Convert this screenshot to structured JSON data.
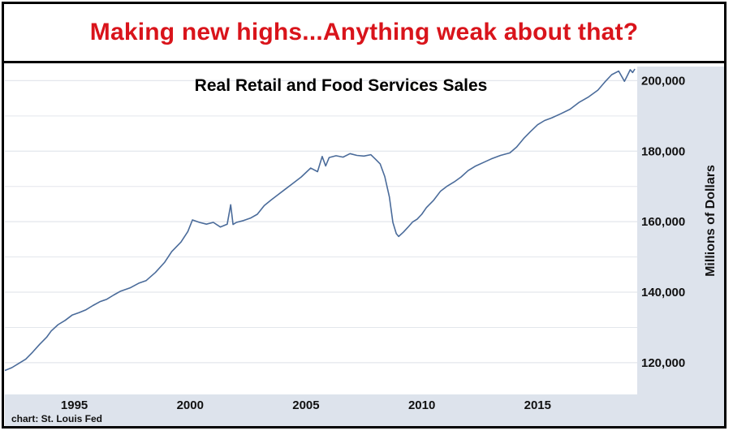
{
  "headline": "Making new highs...Anything weak about that?",
  "source_note": "chart: St. Louis Fed",
  "colors": {
    "headline": "#d9141b",
    "line": "#4a6b9a",
    "plot_bg": "#ffffff",
    "axis_strip": "#dde3ec",
    "grid": "#e3e6ec"
  },
  "chart_data": {
    "type": "line",
    "title": "Real Retail and Food Services Sales",
    "ylabel": "Millions of Dollars",
    "xlabel": "",
    "xlim": [
      1992.0,
      2019.3
    ],
    "ylim": [
      111000,
      204000
    ],
    "x_ticks": [
      1995,
      2000,
      2005,
      2010,
      2015
    ],
    "x_tick_labels": [
      "1995",
      "2000",
      "2005",
      "2010",
      "2015"
    ],
    "y_ticks": [
      120000,
      140000,
      160000,
      180000,
      200000
    ],
    "y_tick_labels": [
      "120,000",
      "140,000",
      "160,000",
      "180,000",
      "200,000"
    ],
    "grid": true,
    "legend": "none",
    "series": [
      {
        "x": [
          1992.0,
          1992.3,
          1992.6,
          1992.9,
          1993.2,
          1993.5,
          1993.8,
          1994.0,
          1994.3,
          1994.6,
          1994.9,
          1995.2,
          1995.5,
          1995.8,
          1996.1,
          1996.4,
          1996.7,
          1997.0,
          1997.4,
          1997.8,
          1998.1,
          1998.5,
          1998.9,
          1999.2,
          1999.6,
          1999.9,
          2000.1,
          2000.4,
          2000.7,
          2001.0,
          2001.3,
          2001.6,
          2001.75,
          2001.85,
          2002.0,
          2002.3,
          2002.6,
          2002.9,
          2003.2,
          2003.5,
          2003.8,
          2004.1,
          2004.4,
          2004.8,
          2005.2,
          2005.5,
          2005.7,
          2005.85,
          2006.0,
          2006.3,
          2006.6,
          2006.9,
          2007.2,
          2007.5,
          2007.8,
          2008.0,
          2008.2,
          2008.4,
          2008.6,
          2008.75,
          2008.9,
          2009.0,
          2009.2,
          2009.4,
          2009.6,
          2009.8,
          2010.0,
          2010.2,
          2010.5,
          2010.8,
          2011.1,
          2011.4,
          2011.7,
          2012.0,
          2012.3,
          2012.7,
          2013.0,
          2013.4,
          2013.8,
          2014.1,
          2014.4,
          2014.7,
          2015.0,
          2015.3,
          2015.6,
          2016.0,
          2016.4,
          2016.8,
          2017.2,
          2017.6,
          2017.9,
          2018.2,
          2018.5,
          2018.75,
          2018.9,
          2019.0,
          2019.1,
          2019.2
        ],
        "values": [
          117800,
          118600,
          119800,
          121000,
          123000,
          125200,
          127200,
          129000,
          130800,
          132000,
          133500,
          134200,
          135000,
          136200,
          137300,
          138000,
          139200,
          140300,
          141200,
          142600,
          143300,
          145600,
          148500,
          151500,
          154200,
          157200,
          160500,
          159800,
          159300,
          159800,
          158500,
          159300,
          164800,
          159200,
          159800,
          160300,
          161000,
          162100,
          164600,
          166200,
          167700,
          169200,
          170700,
          172700,
          175200,
          174200,
          178500,
          175800,
          178200,
          178700,
          178300,
          179300,
          178800,
          178600,
          179000,
          177700,
          176400,
          172800,
          167000,
          159800,
          156600,
          155800,
          157000,
          158400,
          159900,
          160700,
          162100,
          164000,
          166000,
          168600,
          170100,
          171300,
          172700,
          174500,
          175700,
          176900,
          177800,
          178800,
          179500,
          181200,
          183600,
          185600,
          187500,
          188700,
          189400,
          190600,
          191900,
          193900,
          195400,
          197300,
          199600,
          201700,
          202700,
          199800,
          201800,
          203100,
          202300,
          203300
        ]
      }
    ]
  }
}
